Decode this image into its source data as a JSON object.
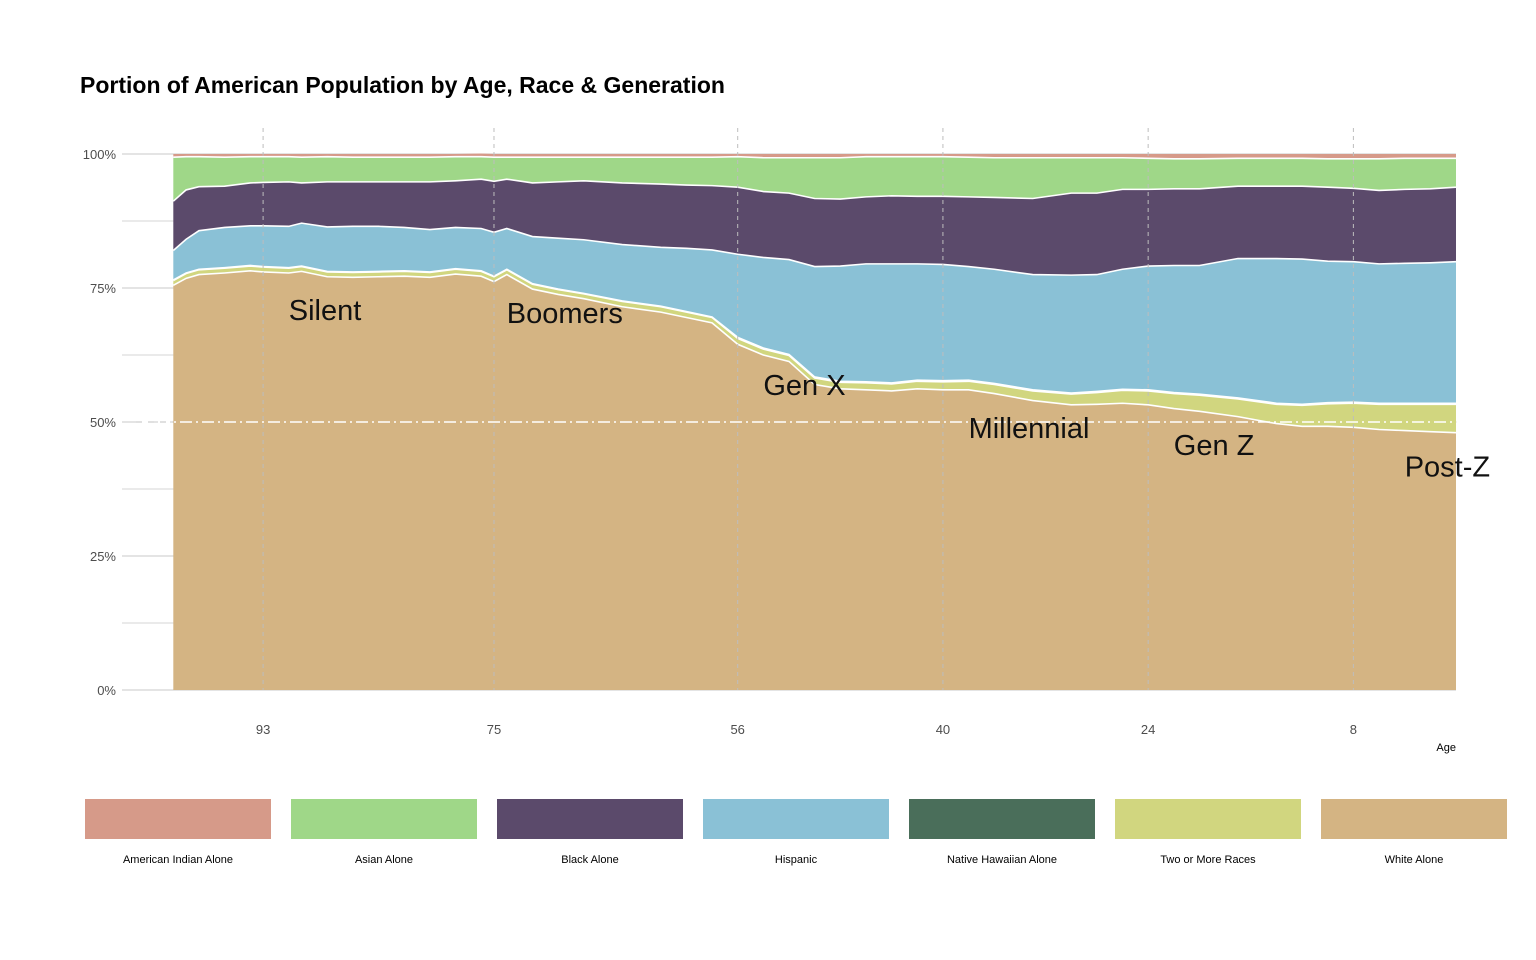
{
  "chart_data": {
    "type": "area",
    "title": "Portion of American Population by Age, Race & Generation",
    "xlabel": "Age",
    "ylabel": "",
    "x_reversed": true,
    "xlim": [
      104,
      0
    ],
    "ylim": [
      0,
      1
    ],
    "y_ticks": [
      "0%",
      "25%",
      "50%",
      "75%",
      "100%"
    ],
    "x_ticks": [
      93,
      75,
      56,
      40,
      24,
      8
    ],
    "grid": true,
    "legend_position": "bottom",
    "reference_line": 0.5,
    "x": [
      100,
      99,
      98,
      96,
      94,
      93,
      91,
      90,
      88,
      86,
      84,
      82,
      80,
      78,
      76,
      75,
      74,
      72,
      70,
      68,
      65,
      62,
      60,
      58,
      56,
      54,
      52,
      50,
      48,
      46,
      44,
      42,
      40,
      38,
      36,
      33,
      30,
      28,
      26,
      24,
      22,
      20,
      17,
      14,
      12,
      10,
      8,
      6,
      4,
      2,
      0
    ],
    "series": [
      {
        "name": "White Alone",
        "color": "#D4B483",
        "values": [
          0.755,
          0.768,
          0.775,
          0.778,
          0.782,
          0.78,
          0.778,
          0.781,
          0.771,
          0.77,
          0.771,
          0.772,
          0.77,
          0.776,
          0.772,
          0.762,
          0.775,
          0.748,
          0.738,
          0.73,
          0.715,
          0.705,
          0.695,
          0.685,
          0.645,
          0.625,
          0.613,
          0.57,
          0.562,
          0.56,
          0.558,
          0.562,
          0.56,
          0.56,
          0.553,
          0.54,
          0.532,
          0.533,
          0.535,
          0.532,
          0.525,
          0.52,
          0.51,
          0.497,
          0.492,
          0.492,
          0.49,
          0.486,
          0.484,
          0.482,
          0.48
        ]
      },
      {
        "name": "Two or More Races",
        "color": "#D1D67F",
        "values": [
          0.009,
          0.009,
          0.009,
          0.009,
          0.009,
          0.009,
          0.009,
          0.009,
          0.009,
          0.009,
          0.009,
          0.009,
          0.009,
          0.009,
          0.009,
          0.009,
          0.009,
          0.009,
          0.009,
          0.009,
          0.01,
          0.01,
          0.01,
          0.01,
          0.011,
          0.011,
          0.011,
          0.012,
          0.012,
          0.013,
          0.013,
          0.014,
          0.015,
          0.016,
          0.017,
          0.018,
          0.02,
          0.022,
          0.024,
          0.026,
          0.028,
          0.03,
          0.033,
          0.036,
          0.039,
          0.042,
          0.045,
          0.047,
          0.049,
          0.051,
          0.053
        ]
      },
      {
        "name": "Native Hawaiian Alone",
        "color": "#4A6E5A",
        "values": [
          0.001,
          0.001,
          0.001,
          0.001,
          0.001,
          0.001,
          0.001,
          0.001,
          0.001,
          0.001,
          0.001,
          0.001,
          0.001,
          0.001,
          0.001,
          0.001,
          0.001,
          0.001,
          0.001,
          0.001,
          0.001,
          0.001,
          0.001,
          0.001,
          0.002,
          0.002,
          0.002,
          0.002,
          0.002,
          0.002,
          0.002,
          0.002,
          0.002,
          0.002,
          0.002,
          0.002,
          0.002,
          0.002,
          0.002,
          0.002,
          0.002,
          0.002,
          0.002,
          0.002,
          0.002,
          0.002,
          0.002,
          0.002,
          0.002,
          0.002,
          0.002
        ]
      },
      {
        "name": "Hispanic",
        "color": "#8AC1D6",
        "values": [
          0.055,
          0.063,
          0.072,
          0.075,
          0.074,
          0.076,
          0.077,
          0.08,
          0.083,
          0.085,
          0.084,
          0.081,
          0.079,
          0.077,
          0.079,
          0.082,
          0.076,
          0.088,
          0.095,
          0.1,
          0.105,
          0.11,
          0.118,
          0.125,
          0.155,
          0.169,
          0.177,
          0.206,
          0.215,
          0.22,
          0.222,
          0.217,
          0.217,
          0.212,
          0.213,
          0.215,
          0.22,
          0.218,
          0.224,
          0.231,
          0.237,
          0.24,
          0.26,
          0.27,
          0.271,
          0.264,
          0.262,
          0.26,
          0.261,
          0.262,
          0.264
        ]
      },
      {
        "name": "Black Alone",
        "color": "#5B4A6B",
        "values": [
          0.092,
          0.092,
          0.082,
          0.077,
          0.08,
          0.081,
          0.083,
          0.075,
          0.084,
          0.083,
          0.083,
          0.085,
          0.089,
          0.087,
          0.092,
          0.095,
          0.092,
          0.1,
          0.105,
          0.11,
          0.115,
          0.118,
          0.118,
          0.12,
          0.125,
          0.123,
          0.124,
          0.127,
          0.125,
          0.125,
          0.127,
          0.126,
          0.127,
          0.13,
          0.134,
          0.142,
          0.153,
          0.152,
          0.149,
          0.143,
          0.143,
          0.143,
          0.135,
          0.135,
          0.136,
          0.138,
          0.137,
          0.137,
          0.138,
          0.138,
          0.139
        ]
      },
      {
        "name": "Asian Alone",
        "color": "#9FD788",
        "values": [
          0.082,
          0.062,
          0.056,
          0.054,
          0.049,
          0.048,
          0.047,
          0.048,
          0.047,
          0.046,
          0.046,
          0.046,
          0.046,
          0.045,
          0.042,
          0.045,
          0.041,
          0.048,
          0.046,
          0.044,
          0.048,
          0.05,
          0.052,
          0.053,
          0.057,
          0.063,
          0.066,
          0.076,
          0.077,
          0.075,
          0.073,
          0.074,
          0.074,
          0.074,
          0.074,
          0.076,
          0.066,
          0.066,
          0.059,
          0.058,
          0.056,
          0.056,
          0.052,
          0.052,
          0.052,
          0.053,
          0.055,
          0.059,
          0.058,
          0.057,
          0.054
        ]
      },
      {
        "name": "American Indian Alone",
        "color": "#D69A89",
        "values": [
          0.006,
          0.005,
          0.005,
          0.006,
          0.005,
          0.005,
          0.005,
          0.006,
          0.005,
          0.006,
          0.006,
          0.006,
          0.006,
          0.005,
          0.006,
          0.006,
          0.006,
          0.006,
          0.006,
          0.006,
          0.006,
          0.006,
          0.006,
          0.006,
          0.005,
          0.007,
          0.007,
          0.007,
          0.007,
          0.005,
          0.005,
          0.005,
          0.005,
          0.006,
          0.007,
          0.007,
          0.007,
          0.007,
          0.007,
          0.008,
          0.009,
          0.009,
          0.008,
          0.008,
          0.008,
          0.009,
          0.009,
          0.009,
          0.008,
          0.008,
          0.008
        ]
      }
    ],
    "annotations": [
      {
        "text": "Silent",
        "x": 91,
        "y": 0.69
      },
      {
        "text": "Boomers",
        "x": 74,
        "y": 0.685
      },
      {
        "text": "Gen X",
        "x": 54,
        "y": 0.55
      },
      {
        "text": "Millennial",
        "x": 38,
        "y": 0.47
      },
      {
        "text": "Gen Z",
        "x": 22,
        "y": 0.438
      },
      {
        "text": "Post-Z",
        "x": 4,
        "y": 0.398
      }
    ]
  },
  "legend": [
    {
      "label": "American Indian Alone",
      "color": "#D69A89"
    },
    {
      "label": "Asian Alone",
      "color": "#9FD788"
    },
    {
      "label": "Black Alone",
      "color": "#5B4A6B"
    },
    {
      "label": "Hispanic",
      "color": "#8AC1D6"
    },
    {
      "label": "Native Hawaiian Alone",
      "color": "#4A6E5A"
    },
    {
      "label": "Two or More Races",
      "color": "#D1D67F"
    },
    {
      "label": "White Alone",
      "color": "#D4B483"
    }
  ]
}
